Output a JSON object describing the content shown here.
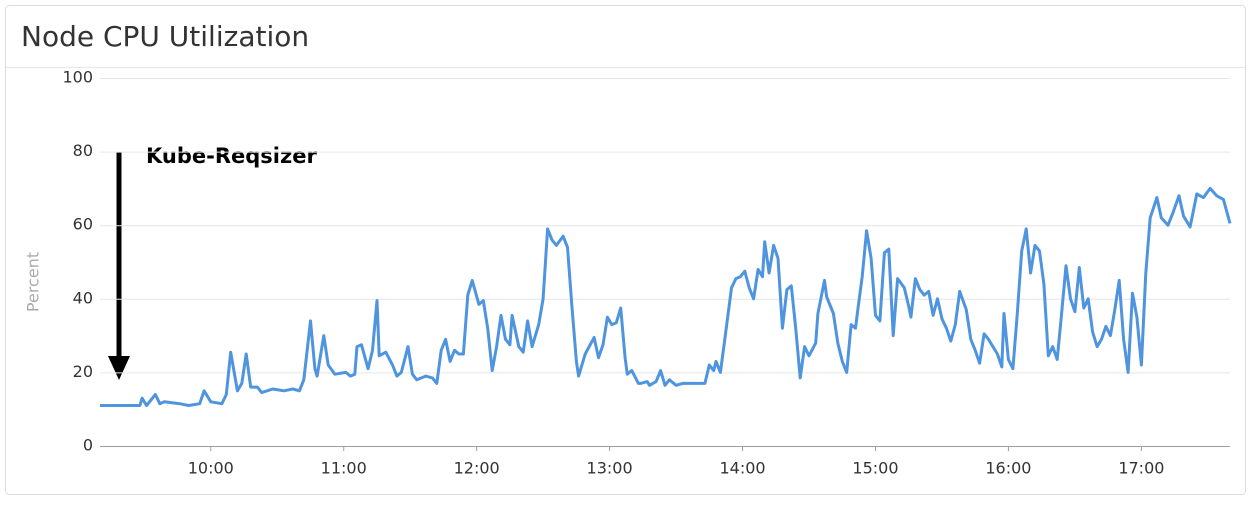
{
  "chart_data": {
    "type": "line",
    "title": "Node CPU Utilization",
    "ylabel": "Percent",
    "annotation": "Kube-Reqsizer",
    "color": "#4f94de",
    "grid": true,
    "ylim": [
      0,
      100
    ],
    "yticks": [
      0,
      20,
      40,
      60,
      80,
      100
    ],
    "xlim": [
      "9:10",
      "17:40"
    ],
    "xticks": [
      "10:00",
      "11:00",
      "12:00",
      "13:00",
      "14:00",
      "15:00",
      "16:00",
      "17:00"
    ],
    "x": [
      "9:10",
      "9:28",
      "9:29",
      "9:31",
      "9:35",
      "9:37",
      "9:39",
      "9:46",
      "9:50",
      "9:55",
      "9:57",
      "10:00",
      "10:05",
      "10:07",
      "10:09",
      "10:12",
      "10:14",
      "10:16",
      "10:18",
      "10:21",
      "10:23",
      "10:28",
      "10:33",
      "10:37",
      "10:40",
      "10:42",
      "10:45",
      "10:47",
      "10:48",
      "10:51",
      "10:53",
      "10:56",
      "11:01",
      "11:03",
      "11:05",
      "11:06",
      "11:08",
      "11:11",
      "11:13",
      "11:15",
      "11:16",
      "11:19",
      "11:22",
      "11:24",
      "11:26",
      "11:29",
      "11:31",
      "11:33",
      "11:37",
      "11:40",
      "11:42",
      "11:44",
      "11:46",
      "11:48",
      "11:50",
      "11:52",
      "11:54",
      "11:56",
      "11:58",
      "12:01",
      "12:03",
      "12:05",
      "12:07",
      "12:09",
      "12:11",
      "12:13",
      "12:15",
      "12:16",
      "12:19",
      "12:21",
      "12:23",
      "12:25",
      "12:28",
      "12:30",
      "12:32",
      "12:34",
      "12:36",
      "12:39",
      "12:41",
      "12:43",
      "12:45",
      "12:46",
      "12:49",
      "12:53",
      "12:55",
      "12:57",
      "12:59",
      "13:01",
      "13:03",
      "13:05",
      "13:07",
      "13:08",
      "13:10",
      "13:13",
      "13:14",
      "13:17",
      "13:18",
      "13:21",
      "13:23",
      "13:25",
      "13:27",
      "13:30",
      "13:33",
      "13:36",
      "13:43",
      "13:45",
      "13:47",
      "13:48",
      "13:50",
      "13:52",
      "13:55",
      "13:57",
      "13:59",
      "14:01",
      "14:03",
      "14:05",
      "14:07",
      "14:09",
      "14:10",
      "14:12",
      "14:14",
      "14:16",
      "14:18",
      "14:20",
      "14:22",
      "14:24",
      "14:26",
      "14:28",
      "14:30",
      "14:33",
      "14:34",
      "14:37",
      "14:38",
      "14:41",
      "14:43",
      "14:45",
      "14:47",
      "14:49",
      "14:51",
      "14:52",
      "14:54",
      "14:56",
      "14:58",
      "15:00",
      "15:02",
      "15:04",
      "15:06",
      "15:08",
      "15:10",
      "15:13",
      "15:15",
      "15:16",
      "15:18",
      "15:20",
      "15:22",
      "15:24",
      "15:26",
      "15:28",
      "15:30",
      "15:32",
      "15:34",
      "15:36",
      "15:38",
      "15:41",
      "15:43",
      "15:45",
      "15:47",
      "15:49",
      "15:51",
      "15:53",
      "15:55",
      "15:57",
      "15:58",
      "16:00",
      "16:02",
      "16:04",
      "16:06",
      "16:08",
      "16:10",
      "16:12",
      "16:14",
      "16:16",
      "16:18",
      "16:20",
      "16:22",
      "16:24",
      "16:26",
      "16:28",
      "16:30",
      "16:32",
      "16:34",
      "16:36",
      "16:38",
      "16:40",
      "16:42",
      "16:44",
      "16:46",
      "16:48",
      "16:50",
      "16:52",
      "16:54",
      "16:56",
      "16:58",
      "17:00",
      "17:02",
      "17:04",
      "17:07",
      "17:09",
      "17:12",
      "17:14",
      "17:17",
      "17:19",
      "17:22",
      "17:25",
      "17:28",
      "17:31",
      "17:34",
      "17:37",
      "17:40"
    ],
    "values": [
      11,
      11,
      13,
      11,
      14,
      11.5,
      12,
      11.5,
      11,
      11.5,
      15,
      12,
      11.5,
      14,
      25.5,
      15,
      17,
      25,
      16,
      16,
      14.5,
      15.5,
      15,
      15.5,
      15,
      18,
      34,
      21,
      19,
      30,
      22,
      19.5,
      20,
      19,
      19.5,
      27,
      27.5,
      21,
      26,
      39.5,
      24.5,
      25.5,
      22,
      19,
      20,
      27,
      19.5,
      18,
      19,
      18.5,
      17,
      26,
      29,
      23,
      26,
      25,
      25,
      41,
      45,
      38.5,
      39.5,
      32,
      20.5,
      27,
      35.5,
      29,
      27.5,
      35.5,
      27,
      25.5,
      34,
      27,
      33,
      40,
      59,
      56,
      54.5,
      57,
      54,
      38,
      23,
      19,
      25,
      29.5,
      24,
      27.5,
      35,
      33,
      33.5,
      37.5,
      24,
      19.5,
      20.5,
      17,
      17,
      17.5,
      16.5,
      17.5,
      20.5,
      16.5,
      18,
      16.5,
      17,
      17,
      17,
      22,
      20.5,
      23,
      20,
      29,
      43,
      45.5,
      46,
      47.5,
      43,
      40,
      48,
      46,
      55.5,
      47,
      54.5,
      51,
      32,
      42.5,
      43.5,
      32,
      18.5,
      27,
      24.5,
      28,
      36,
      45,
      40.5,
      36,
      28,
      23,
      20,
      33,
      32,
      37,
      46,
      58.5,
      51,
      35.5,
      34,
      52.5,
      53.5,
      30,
      45.5,
      43,
      38,
      35,
      45.5,
      42.5,
      41,
      42,
      35.5,
      40,
      34.5,
      32,
      28.5,
      33,
      42,
      37,
      29,
      26,
      22.5,
      30.5,
      29,
      27,
      25,
      21.5,
      36,
      23.5,
      21,
      36,
      53,
      59,
      47,
      54.5,
      53,
      44,
      24.5,
      27,
      23.5,
      36,
      49,
      40,
      36.5,
      48.5,
      37.5,
      40,
      31,
      27,
      29,
      32.5,
      30,
      37,
      45,
      29,
      20,
      41.5,
      35,
      22,
      47,
      62,
      67.5,
      62,
      60,
      63,
      68,
      62.5,
      59.5,
      68.5,
      67.5,
      70,
      68,
      67,
      60.5
    ]
  }
}
